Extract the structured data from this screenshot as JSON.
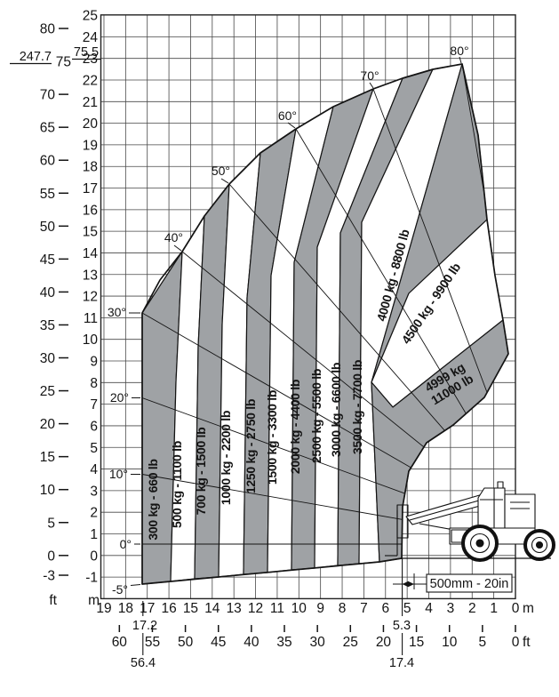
{
  "chart_data": {
    "type": "area",
    "description": "Telehandler boom load capacity envelope chart",
    "zones": [
      {
        "capacity_kg": 300,
        "capacity_lb": 660,
        "label": "300 kg - 660 lb",
        "shaded": true
      },
      {
        "capacity_kg": 500,
        "capacity_lb": 1100,
        "label": "500 kg - 1100 lb",
        "shaded": false
      },
      {
        "capacity_kg": 700,
        "capacity_lb": 1500,
        "label": "700 kg - 1500 lb",
        "shaded": true
      },
      {
        "capacity_kg": 1000,
        "capacity_lb": 2200,
        "label": "1000 kg - 2200 lb",
        "shaded": false
      },
      {
        "capacity_kg": 1250,
        "capacity_lb": 2750,
        "label": "1250 kg - 2750 lb",
        "shaded": true
      },
      {
        "capacity_kg": 1500,
        "capacity_lb": 3300,
        "label": "1500 kg - 3300 lb",
        "shaded": false
      },
      {
        "capacity_kg": 2000,
        "capacity_lb": 4400,
        "label": "2000 kg - 4400 lb",
        "shaded": true
      },
      {
        "capacity_kg": 2500,
        "capacity_lb": 5500,
        "label": "2500 kg - 5500 lb",
        "shaded": false
      },
      {
        "capacity_kg": 3000,
        "capacity_lb": 6600,
        "label": "3000 kg - 6600 lb",
        "shaded": true
      },
      {
        "capacity_kg": 3500,
        "capacity_lb": 7700,
        "label": "3500 kg - 7700 lb",
        "shaded": false
      },
      {
        "capacity_kg": 4000,
        "capacity_lb": 8800,
        "label": "4000 kg - 8800 lb",
        "shaded": true
      },
      {
        "capacity_kg": 4500,
        "capacity_lb": 9900,
        "label": "4500 kg - 9900 lb",
        "shaded": false
      },
      {
        "capacity_kg": 4999,
        "capacity_lb": 11000,
        "label_line1": "4999 kg",
        "label_line2": "11000 lb",
        "shaded": true
      }
    ],
    "boom_angle_labels": [
      "-5°",
      "0°",
      "10°",
      "20°",
      "30°",
      "40°",
      "50°",
      "60°",
      "70°",
      "80°"
    ],
    "boom_angles_deg": [
      -5,
      0,
      10,
      20,
      30,
      40,
      50,
      60,
      70,
      80
    ],
    "axes": {
      "left_outer": {
        "unit": "ft",
        "ticks": [
          "80",
          "75",
          "70",
          "65",
          "60",
          "55",
          "50",
          "45",
          "40",
          "35",
          "30",
          "25",
          "20",
          "15",
          "10",
          "5",
          "0",
          "-3"
        ]
      },
      "left_inner": {
        "unit": "m",
        "ticks": [
          "25",
          "24",
          "23",
          "22",
          "21",
          "20",
          "19",
          "18",
          "17",
          "16",
          "15",
          "14",
          "13",
          "12",
          "11",
          "10",
          "9",
          "8",
          "7",
          "6",
          "5",
          "4",
          "3",
          "2",
          "1",
          "0",
          "-1"
        ]
      },
      "bottom_inner": {
        "unit": "m",
        "ticks": [
          "19",
          "18",
          "17",
          "16",
          "15",
          "14",
          "13",
          "12",
          "11",
          "10",
          "9",
          "8",
          "7",
          "6",
          "5",
          "4",
          "3",
          "2",
          "1",
          "0"
        ]
      },
      "bottom_outer": {
        "unit": "ft",
        "ticks": [
          "60",
          "55",
          "50",
          "45",
          "40",
          "35",
          "30",
          "25",
          "20",
          "15",
          "10",
          "5",
          "0"
        ]
      }
    },
    "dimension_labels": {
      "max_height_primary": "247.7",
      "max_height_ft": "75.5",
      "max_reach_m": "17.2",
      "max_reach_ft": "56.4",
      "min_reach_m": "5.3",
      "min_reach_ft": "17.4",
      "fork_offset": "500mm - 20in"
    },
    "ground_zone_boundaries_m": [
      17.2,
      15.9,
      14.8,
      13.7,
      12.6,
      11.5,
      10.3,
      9.3,
      8.2,
      7.2,
      6.3,
      5.3
    ],
    "max_lift_height_m": 23,
    "layout": {
      "grid": true,
      "legend": "none",
      "x_range_m": [
        0,
        19
      ],
      "y_range_m": [
        -2,
        25
      ]
    },
    "colors": {
      "shaded_zone": "#9fa2a5",
      "clear_zone": "#ffffff",
      "line": "#141414",
      "grid": "#474747"
    }
  }
}
